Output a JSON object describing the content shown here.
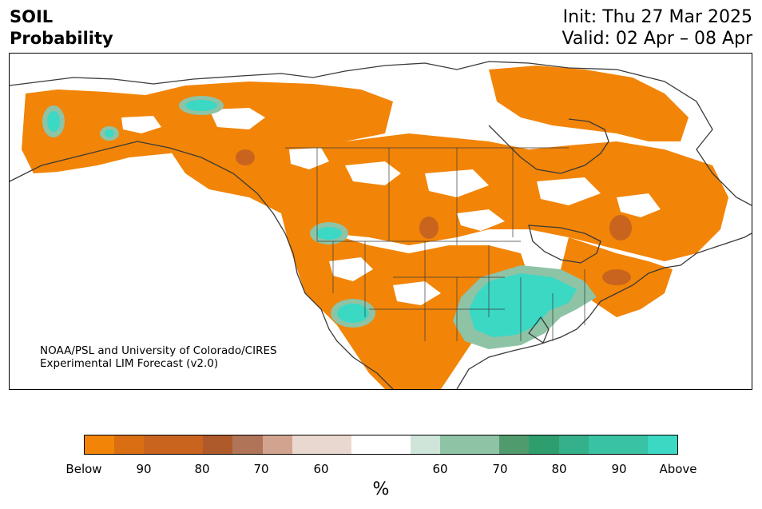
{
  "header": {
    "title_line1": "SOIL",
    "title_line2": "Probability",
    "init": "Init: Thu 27 Mar 2025",
    "valid": "Valid: 02 Apr – 08 Apr"
  },
  "map": {
    "credit_line1": "NOAA/PSL and University of Colorado/CIRES",
    "credit_line2": "Experimental LIM Forecast (v2.0)",
    "colors": {
      "below_strong": "#f28407",
      "below_mid": "#c9641f",
      "below_weak": "#a9704f",
      "above_strong": "#3bd8c4",
      "above_mid": "#2f9e6e",
      "above_weak": "#8ec3a6",
      "border": "#3a3a3a"
    },
    "icons": [
      "coastline-icon",
      "state-border-icon"
    ]
  },
  "colorbar": {
    "colors": [
      "#f28407",
      "#d96f12",
      "#c9641f",
      "#c9641f",
      "#ae5a2b",
      "#b07458",
      "#d2a48f",
      "#e9d8cf",
      "#e9d8cf",
      "#ffffff",
      "#ffffff",
      "#cfe5da",
      "#8ec3a6",
      "#8ec3a6",
      "#4f9b6d",
      "#2f9e6e",
      "#34b08a",
      "#39c2a3",
      "#39c2a3",
      "#3bd8c4"
    ],
    "tick_labels": [
      "Below",
      "90",
      "80",
      "70",
      "60",
      "60",
      "70",
      "80",
      "90",
      "Above"
    ],
    "unit_label": "%"
  }
}
